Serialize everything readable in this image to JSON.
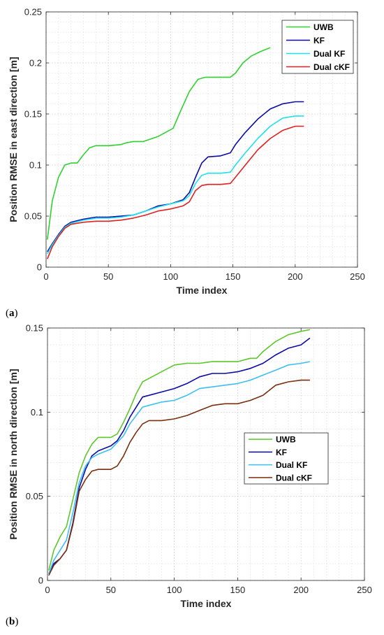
{
  "chart_data": [
    {
      "type": "line",
      "panel_label": "(a)",
      "xlabel": "Time index",
      "ylabel": "Position RMSE in east direction [m]",
      "xlim": [
        0,
        250
      ],
      "ylim": [
        0,
        0.25
      ],
      "xticks": [
        "0",
        "50",
        "100",
        "150",
        "200",
        "250"
      ],
      "yticks": [
        "0",
        "0.05",
        "0.1",
        "0.15",
        "0.2",
        "0.25"
      ],
      "grid": true,
      "legend_position": "top-right",
      "series": [
        {
          "name": "UWB",
          "color": "#2fd12f",
          "x": [
            1,
            5,
            10,
            15,
            20,
            25,
            30,
            35,
            40,
            50,
            60,
            65,
            70,
            78,
            90,
            102,
            108,
            115,
            122,
            128,
            135,
            140,
            148,
            152,
            158,
            165,
            172,
            180
          ],
          "y": [
            0.027,
            0.065,
            0.088,
            0.1,
            0.102,
            0.102,
            0.11,
            0.117,
            0.119,
            0.119,
            0.12,
            0.122,
            0.123,
            0.123,
            0.128,
            0.136,
            0.153,
            0.172,
            0.184,
            0.186,
            0.186,
            0.186,
            0.186,
            0.19,
            0.2,
            0.207,
            0.211,
            0.215
          ]
        },
        {
          "name": "KF",
          "color": "#0a0aa6",
          "x": [
            1,
            5,
            10,
            15,
            20,
            30,
            40,
            50,
            60,
            70,
            80,
            90,
            100,
            110,
            115,
            120,
            125,
            130,
            140,
            148,
            152,
            160,
            170,
            180,
            190,
            200,
            207
          ],
          "y": [
            0.015,
            0.023,
            0.032,
            0.04,
            0.044,
            0.047,
            0.049,
            0.049,
            0.05,
            0.051,
            0.055,
            0.06,
            0.062,
            0.066,
            0.073,
            0.088,
            0.102,
            0.108,
            0.109,
            0.112,
            0.12,
            0.132,
            0.145,
            0.155,
            0.16,
            0.162,
            0.162
          ]
        },
        {
          "name": "Dual KF",
          "color": "#1ee0ee",
          "x": [
            1,
            5,
            10,
            15,
            20,
            30,
            40,
            50,
            60,
            70,
            80,
            90,
            100,
            110,
            115,
            120,
            125,
            130,
            140,
            148,
            152,
            160,
            170,
            180,
            190,
            200,
            207
          ],
          "y": [
            0.013,
            0.022,
            0.031,
            0.039,
            0.043,
            0.046,
            0.048,
            0.048,
            0.049,
            0.051,
            0.055,
            0.059,
            0.062,
            0.065,
            0.07,
            0.082,
            0.09,
            0.092,
            0.092,
            0.093,
            0.1,
            0.112,
            0.126,
            0.138,
            0.146,
            0.148,
            0.148
          ]
        },
        {
          "name": "Dual cKF",
          "color": "#e02020",
          "x": [
            1,
            5,
            10,
            15,
            20,
            30,
            40,
            50,
            60,
            70,
            80,
            90,
            100,
            110,
            115,
            120,
            125,
            130,
            140,
            148,
            152,
            160,
            170,
            180,
            190,
            200,
            207
          ],
          "y": [
            0.008,
            0.02,
            0.03,
            0.038,
            0.042,
            0.044,
            0.045,
            0.045,
            0.046,
            0.048,
            0.051,
            0.055,
            0.057,
            0.06,
            0.064,
            0.075,
            0.08,
            0.081,
            0.081,
            0.082,
            0.088,
            0.1,
            0.115,
            0.126,
            0.134,
            0.138,
            0.138
          ]
        }
      ]
    },
    {
      "type": "line",
      "panel_label": "(b)",
      "xlabel": "Time index",
      "ylabel": "Position RMSE in north direction [m]",
      "xlim": [
        0,
        250
      ],
      "ylim": [
        0,
        0.15
      ],
      "xticks": [
        "0",
        "50",
        "100",
        "150",
        "200",
        "250"
      ],
      "yticks": [
        "0",
        "0.05",
        "0.1",
        "0.15"
      ],
      "grid": true,
      "legend_position": "center-right",
      "series": [
        {
          "name": "UWB",
          "color": "#5cc72a",
          "x": [
            1,
            5,
            10,
            15,
            20,
            25,
            30,
            35,
            40,
            50,
            55,
            60,
            65,
            70,
            75,
            80,
            90,
            100,
            110,
            120,
            130,
            140,
            150,
            160,
            165,
            170,
            180,
            190,
            200,
            207
          ],
          "y": [
            0.006,
            0.018,
            0.026,
            0.032,
            0.048,
            0.064,
            0.074,
            0.081,
            0.085,
            0.085,
            0.087,
            0.094,
            0.102,
            0.111,
            0.118,
            0.12,
            0.124,
            0.128,
            0.129,
            0.129,
            0.13,
            0.13,
            0.13,
            0.132,
            0.132,
            0.136,
            0.142,
            0.146,
            0.148,
            0.149
          ]
        },
        {
          "name": "KF",
          "color": "#0a0aa6",
          "x": [
            1,
            5,
            10,
            15,
            20,
            25,
            30,
            35,
            40,
            50,
            55,
            60,
            65,
            70,
            75,
            80,
            90,
            100,
            110,
            120,
            130,
            140,
            150,
            160,
            170,
            180,
            190,
            200,
            207
          ],
          "y": [
            0.004,
            0.01,
            0.013,
            0.018,
            0.034,
            0.055,
            0.066,
            0.074,
            0.077,
            0.08,
            0.083,
            0.089,
            0.097,
            0.103,
            0.109,
            0.11,
            0.112,
            0.114,
            0.117,
            0.121,
            0.123,
            0.123,
            0.124,
            0.126,
            0.129,
            0.134,
            0.138,
            0.14,
            0.144
          ]
        },
        {
          "name": "Dual KF",
          "color": "#3cbff0",
          "x": [
            1,
            5,
            10,
            15,
            20,
            25,
            30,
            35,
            40,
            50,
            55,
            60,
            65,
            70,
            75,
            80,
            90,
            100,
            110,
            120,
            130,
            140,
            150,
            160,
            170,
            180,
            190,
            200,
            207
          ],
          "y": [
            0.004,
            0.012,
            0.018,
            0.024,
            0.04,
            0.058,
            0.068,
            0.073,
            0.075,
            0.078,
            0.082,
            0.086,
            0.093,
            0.098,
            0.103,
            0.104,
            0.106,
            0.107,
            0.11,
            0.114,
            0.115,
            0.116,
            0.117,
            0.119,
            0.122,
            0.125,
            0.128,
            0.129,
            0.13
          ]
        },
        {
          "name": "Dual cKF",
          "color": "#7a2e0e",
          "x": [
            1,
            5,
            10,
            15,
            20,
            25,
            30,
            35,
            40,
            50,
            55,
            60,
            65,
            70,
            75,
            80,
            90,
            100,
            110,
            120,
            130,
            140,
            150,
            160,
            170,
            180,
            190,
            200,
            207
          ],
          "y": [
            0.003,
            0.009,
            0.013,
            0.018,
            0.033,
            0.053,
            0.06,
            0.065,
            0.066,
            0.066,
            0.068,
            0.074,
            0.082,
            0.088,
            0.093,
            0.095,
            0.095,
            0.096,
            0.098,
            0.101,
            0.104,
            0.105,
            0.105,
            0.107,
            0.11,
            0.116,
            0.118,
            0.119,
            0.119
          ]
        }
      ]
    }
  ]
}
